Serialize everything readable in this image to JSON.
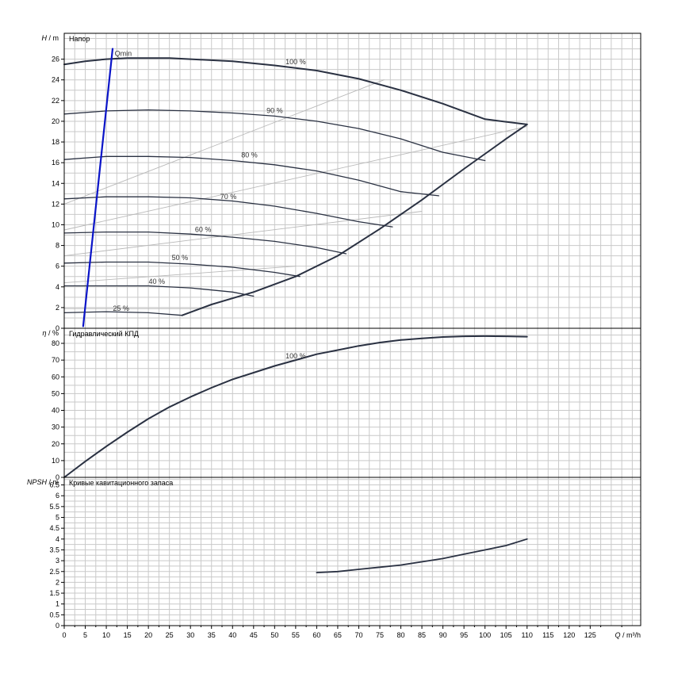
{
  "chart_data": [
    {
      "type": "line",
      "title": "Напор",
      "ylabel_symbol": "H",
      "ylabel_sep": "/",
      "ylabel_unit": "m",
      "xlim": [
        0,
        137
      ],
      "ylim": [
        0,
        28.5
      ],
      "yticks": [
        0,
        2,
        4,
        6,
        8,
        10,
        12,
        14,
        16,
        18,
        20,
        22,
        24,
        26
      ],
      "grid": true,
      "series": [
        {
          "name": "100 %",
          "role": "curve",
          "x": [
            0,
            5,
            10,
            15,
            20,
            25,
            30,
            40,
            50,
            60,
            70,
            80,
            90,
            100,
            110
          ],
          "y": [
            25.5,
            25.8,
            26.0,
            26.1,
            26.1,
            26.1,
            26.0,
            25.8,
            25.4,
            24.9,
            24.1,
            23.0,
            21.7,
            20.2,
            19.7
          ]
        },
        {
          "name": "90 %",
          "role": "curve",
          "x": [
            0,
            10,
            20,
            30,
            40,
            50,
            60,
            70,
            80,
            90,
            100
          ],
          "y": [
            20.7,
            21.0,
            21.1,
            21.0,
            20.8,
            20.5,
            20.0,
            19.3,
            18.3,
            17.0,
            16.2
          ]
        },
        {
          "name": "80 %",
          "role": "curve",
          "x": [
            0,
            10,
            20,
            30,
            40,
            50,
            60,
            70,
            80,
            89
          ],
          "y": [
            16.3,
            16.6,
            16.6,
            16.5,
            16.2,
            15.8,
            15.2,
            14.3,
            13.2,
            12.8
          ]
        },
        {
          "name": "70 %",
          "role": "curve",
          "x": [
            0,
            10,
            20,
            30,
            40,
            50,
            60,
            70,
            78
          ],
          "y": [
            12.5,
            12.7,
            12.7,
            12.6,
            12.3,
            11.8,
            11.1,
            10.3,
            9.8
          ]
        },
        {
          "name": "60 %",
          "role": "curve",
          "x": [
            0,
            10,
            20,
            30,
            40,
            50,
            60,
            67
          ],
          "y": [
            9.2,
            9.3,
            9.3,
            9.1,
            8.8,
            8.4,
            7.8,
            7.2
          ]
        },
        {
          "name": "50 %",
          "role": "curve",
          "x": [
            0,
            10,
            20,
            30,
            40,
            50,
            56
          ],
          "y": [
            6.3,
            6.4,
            6.4,
            6.2,
            5.9,
            5.4,
            5.0
          ]
        },
        {
          "name": "40 %",
          "role": "curve",
          "x": [
            0,
            10,
            20,
            30,
            40,
            45
          ],
          "y": [
            4.1,
            4.1,
            4.1,
            3.9,
            3.5,
            3.1
          ]
        },
        {
          "name": "25 %",
          "role": "curve",
          "x": [
            0,
            10,
            20,
            28
          ],
          "y": [
            1.5,
            1.6,
            1.5,
            1.25
          ]
        },
        {
          "role": "envelope",
          "x": [
            28,
            35,
            45,
            55,
            65,
            75,
            85,
            95,
            105,
            110
          ],
          "y": [
            1.25,
            2.3,
            3.5,
            5.0,
            7.0,
            9.6,
            12.4,
            15.4,
            18.3,
            19.7
          ]
        },
        {
          "role": "thin",
          "x": [
            0,
            76
          ],
          "y": [
            12.0,
            24.0
          ]
        },
        {
          "role": "thin",
          "x": [
            0,
            110
          ],
          "y": [
            9.5,
            19.5
          ]
        },
        {
          "role": "thin",
          "x": [
            0,
            85
          ],
          "y": [
            7.0,
            11.3
          ]
        },
        {
          "role": "thin",
          "x": [
            0,
            55
          ],
          "y": [
            4.4,
            6.0
          ]
        },
        {
          "role": "thin",
          "x": [
            0,
            35
          ],
          "y": [
            1.9,
            1.9
          ]
        },
        {
          "name": "Qmin",
          "role": "qmin",
          "x": [
            4.5,
            11.5
          ],
          "y": [
            0.2,
            27.0
          ]
        }
      ],
      "curve_labels": [
        {
          "text": "100 %",
          "x": 55,
          "y": 25.5
        },
        {
          "text": "90 %",
          "x": 50,
          "y": 20.8
        },
        {
          "text": "80 %",
          "x": 44,
          "y": 16.5
        },
        {
          "text": "70 %",
          "x": 39,
          "y": 12.5
        },
        {
          "text": "60 %",
          "x": 33,
          "y": 9.3
        },
        {
          "text": "50 %",
          "x": 27.5,
          "y": 6.6
        },
        {
          "text": "40 %",
          "x": 22,
          "y": 4.3
        },
        {
          "text": "25 %",
          "x": 13.5,
          "y": 1.7
        }
      ],
      "qmin_label": {
        "text": "Qmin",
        "x": 12,
        "y": 26.3
      }
    },
    {
      "type": "line",
      "title": "Гидравлический КПД",
      "ylabel_symbol": "η",
      "ylabel_sep": "/",
      "ylabel_unit": "%",
      "xlim": [
        0,
        137
      ],
      "ylim": [
        0,
        89
      ],
      "yticks": [
        0,
        10,
        20,
        30,
        40,
        50,
        60,
        70,
        80
      ],
      "grid": true,
      "series": [
        {
          "name": "100 %",
          "role": "curve",
          "x": [
            0,
            5,
            10,
            15,
            20,
            25,
            30,
            35,
            40,
            45,
            50,
            55,
            60,
            65,
            70,
            75,
            80,
            85,
            90,
            95,
            100,
            105,
            110
          ],
          "y": [
            0,
            9.5,
            18.5,
            27,
            35,
            42,
            48,
            53.5,
            58.5,
            62.5,
            66.5,
            70,
            73.5,
            76,
            78.5,
            80.5,
            82,
            83,
            83.8,
            84.2,
            84.3,
            84.2,
            84
          ]
        }
      ],
      "curve_labels": [
        {
          "text": "100 %",
          "x": 55,
          "y": 71
        }
      ]
    },
    {
      "type": "line",
      "title": "Кривые кавитационного запаса",
      "ylabel_symbol": "NPSH",
      "ylabel_sep": "/",
      "ylabel_unit": "m",
      "xlim": [
        0,
        137
      ],
      "ylim": [
        0,
        6.85
      ],
      "yticks": [
        0,
        0.5,
        1,
        1.5,
        2,
        2.5,
        3,
        3.5,
        4,
        4.5,
        5,
        5.5,
        6,
        6.5
      ],
      "ytick_labels": [
        "0",
        "0.5",
        "1",
        "1.5",
        "2",
        "2.5",
        "3",
        "3.5",
        "4",
        "4.5",
        "5",
        "5.5",
        "6",
        "6.5"
      ],
      "grid": true,
      "series": [
        {
          "role": "curve",
          "x": [
            60,
            65,
            70,
            75,
            80,
            85,
            90,
            95,
            100,
            105,
            110
          ],
          "y": [
            2.45,
            2.5,
            2.6,
            2.7,
            2.8,
            2.95,
            3.1,
            3.3,
            3.5,
            3.7,
            4.0
          ]
        }
      ]
    }
  ],
  "x_axis": {
    "xlim": [
      0,
      137
    ],
    "ticks": [
      0,
      5,
      10,
      15,
      20,
      25,
      30,
      35,
      40,
      45,
      50,
      55,
      60,
      65,
      70,
      75,
      80,
      85,
      90,
      95,
      100,
      105,
      110,
      115,
      120,
      125
    ],
    "label_symbol": "Q",
    "label_sep": "/",
    "label_unit": "m³/h"
  },
  "colors": {
    "curve": "#2a3142",
    "thin": "#b9b9b9",
    "grid": "#c9c9c9",
    "qmin": "#0a14c8",
    "frame": "#000000"
  }
}
